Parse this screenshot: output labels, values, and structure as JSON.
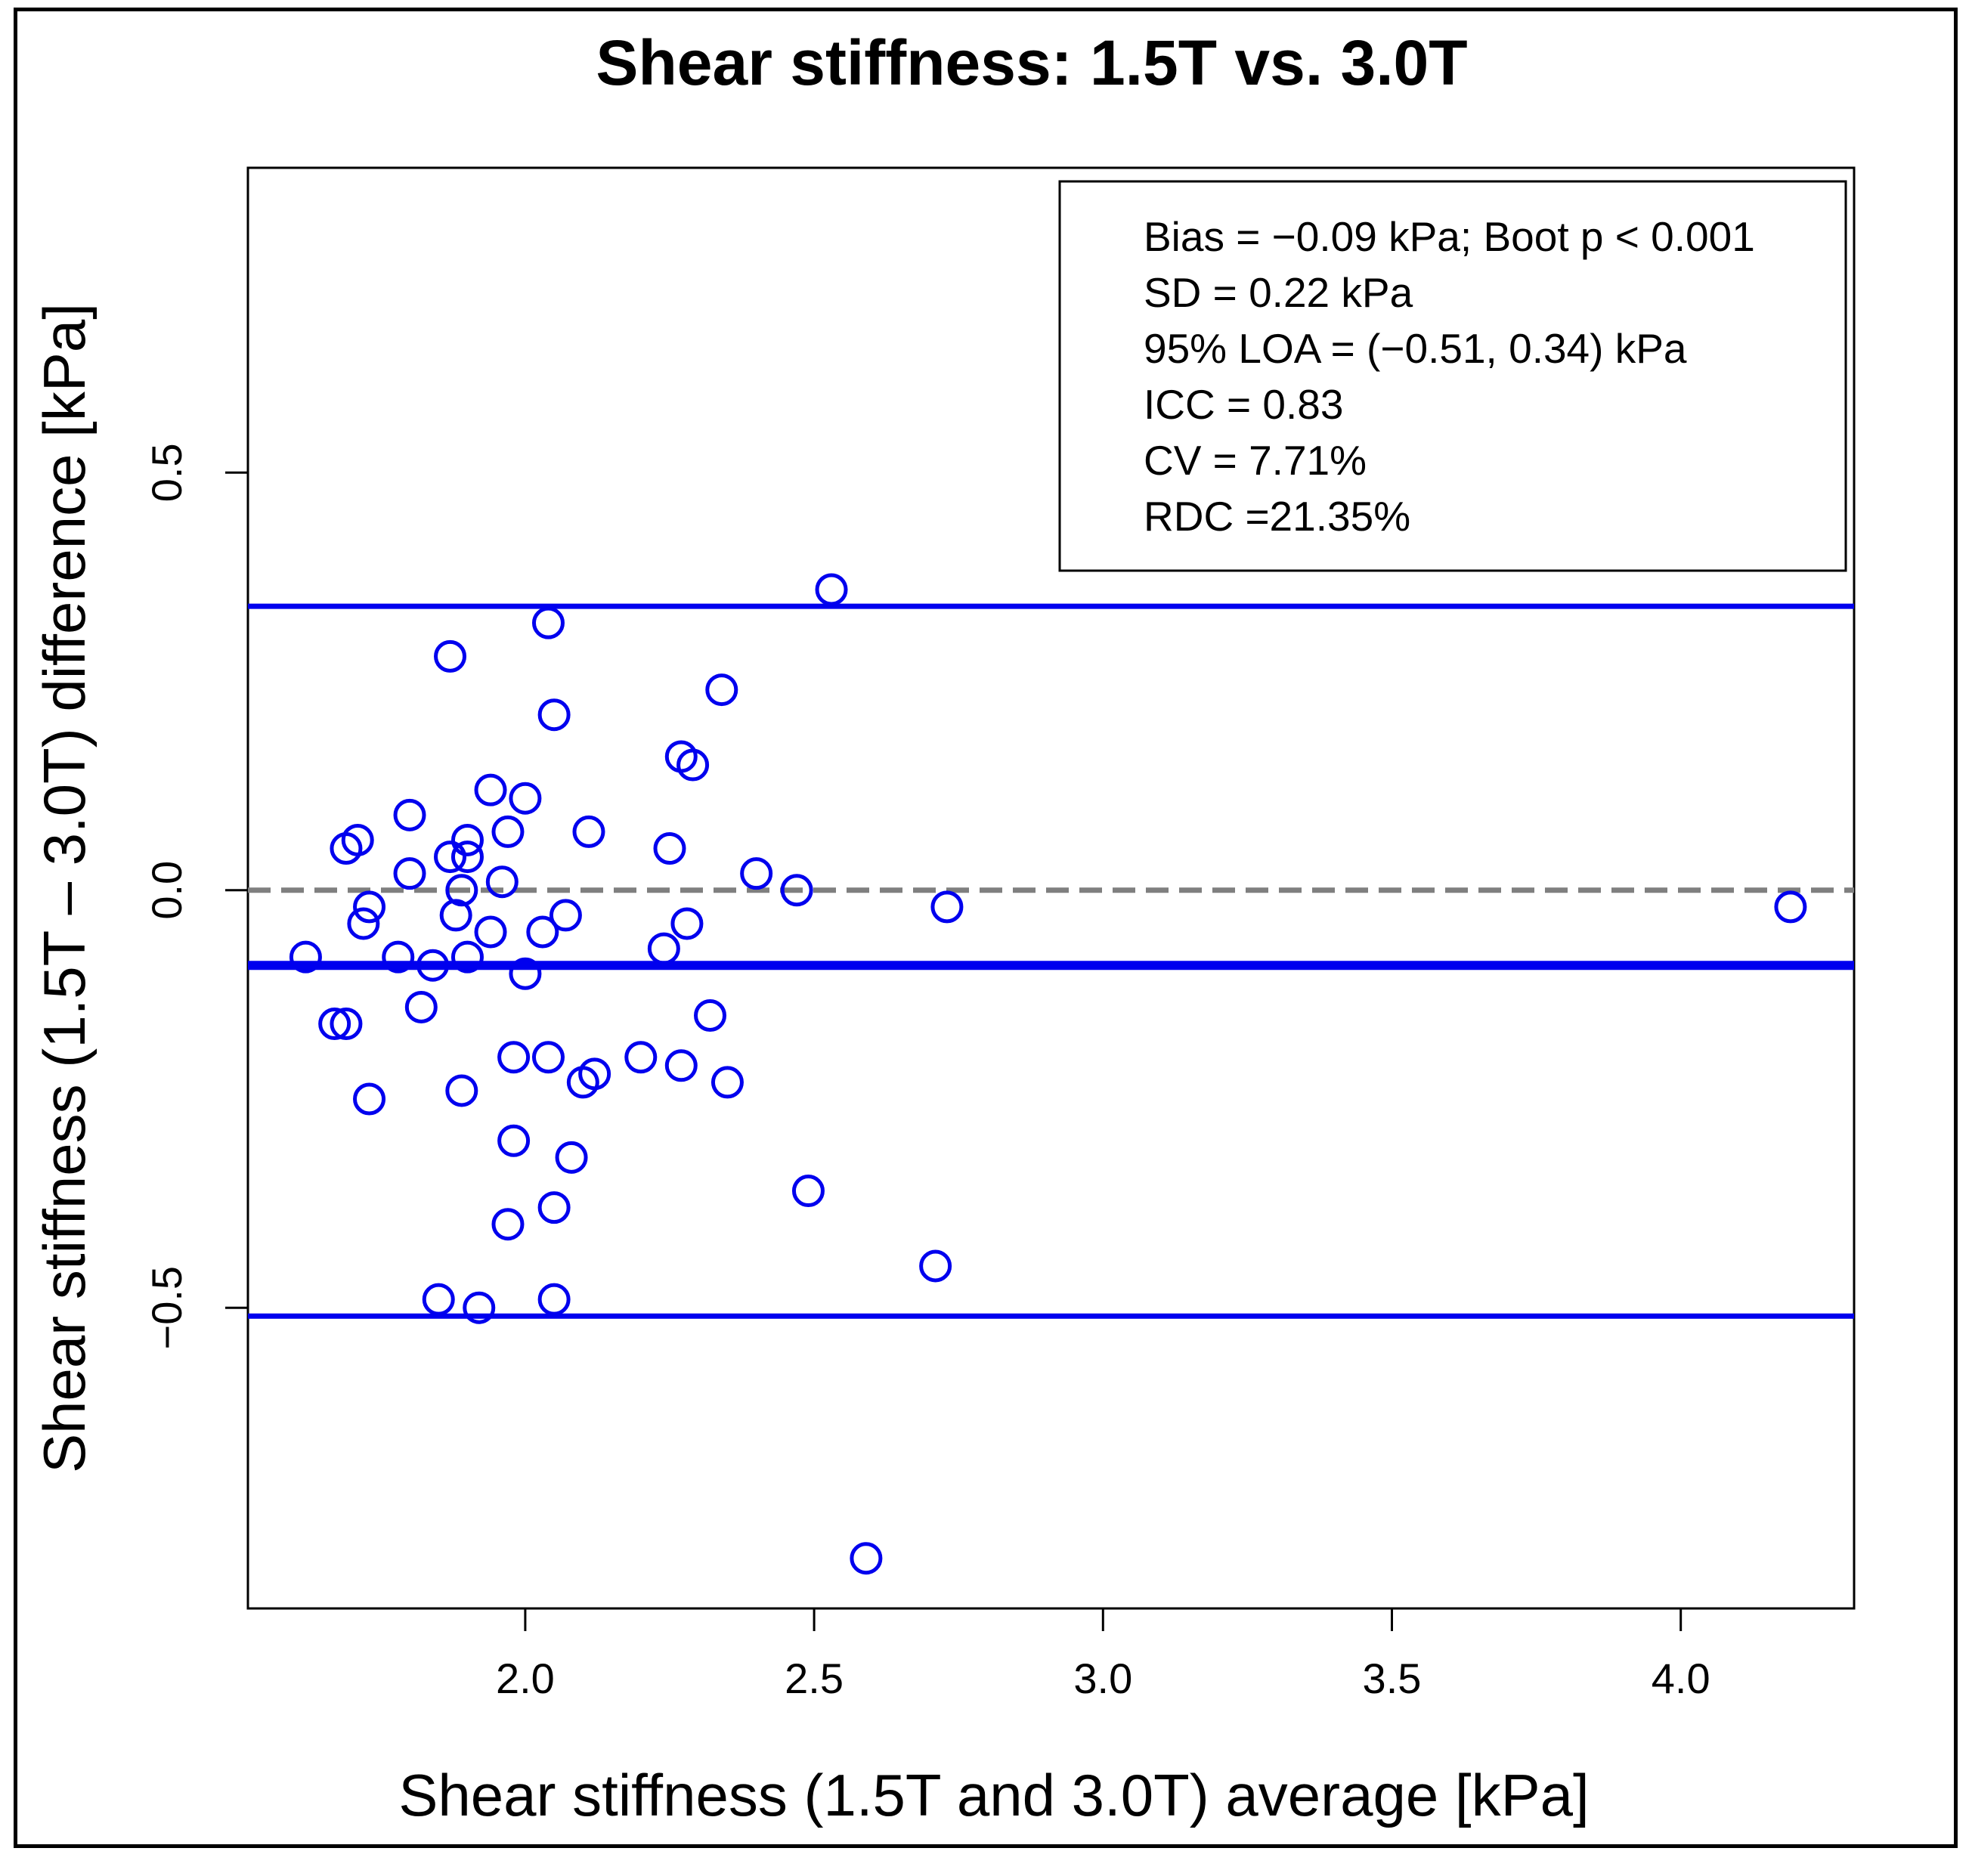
{
  "chart_data": {
    "type": "scatter",
    "title": "Shear stiffness: 1.5T vs. 3.0T",
    "xlabel": "Shear stiffness (1.5T and 3.0T) average [kPa]",
    "ylabel": "Shear stiffness (1.5T – 3.0T) difference [kPa]",
    "xlim": [
      1.52,
      4.3
    ],
    "ylim": [
      -0.86,
      0.865
    ],
    "xticks": [
      2.0,
      2.5,
      3.0,
      3.5,
      4.0
    ],
    "xtick_labels": [
      "2.0",
      "2.5",
      "3.0",
      "3.5",
      "4.0"
    ],
    "yticks": [
      -0.5,
      0.0,
      0.5
    ],
    "ytick_labels": [
      "−0.5",
      "0.0",
      "0.5"
    ],
    "grid": false,
    "legend_position": "top-right",
    "legend": [
      "Bias = −0.09 kPa; Boot p < 0.001",
      "SD = 0.22 kPa",
      "95% LOA = (−0.51, 0.34) kPa",
      "ICC = 0.83",
      "CV = 7.71%",
      "RDC =21.35%"
    ],
    "reference_lines": [
      {
        "name": "upper-loa",
        "y": 0.34,
        "style": "solid",
        "color": "#0000ee"
      },
      {
        "name": "zero",
        "y": 0.0,
        "style": "dashed",
        "color": "#7f7f7f"
      },
      {
        "name": "bias",
        "y": -0.09,
        "style": "solid-thick",
        "color": "#0000ee"
      },
      {
        "name": "lower-loa",
        "y": -0.51,
        "style": "solid",
        "color": "#0000ee"
      }
    ],
    "marker_color": "#0000ee",
    "points": [
      {
        "x": 2.53,
        "y": 0.36
      },
      {
        "x": 2.04,
        "y": 0.32
      },
      {
        "x": 1.87,
        "y": 0.28
      },
      {
        "x": 2.34,
        "y": 0.24
      },
      {
        "x": 2.05,
        "y": 0.21
      },
      {
        "x": 2.27,
        "y": 0.16
      },
      {
        "x": 2.29,
        "y": 0.15
      },
      {
        "x": 1.94,
        "y": 0.12
      },
      {
        "x": 2.0,
        "y": 0.11
      },
      {
        "x": 1.8,
        "y": 0.09
      },
      {
        "x": 1.97,
        "y": 0.07
      },
      {
        "x": 2.11,
        "y": 0.07
      },
      {
        "x": 1.71,
        "y": 0.06
      },
      {
        "x": 1.9,
        "y": 0.06
      },
      {
        "x": 1.69,
        "y": 0.05
      },
      {
        "x": 2.25,
        "y": 0.05
      },
      {
        "x": 1.87,
        "y": 0.04
      },
      {
        "x": 1.9,
        "y": 0.04
      },
      {
        "x": 1.8,
        "y": 0.02
      },
      {
        "x": 2.4,
        "y": 0.02
      },
      {
        "x": 1.96,
        "y": 0.01
      },
      {
        "x": 1.89,
        "y": 0.0
      },
      {
        "x": 2.47,
        "y": 0.0
      },
      {
        "x": 1.73,
        "y": -0.02
      },
      {
        "x": 2.73,
        "y": -0.02
      },
      {
        "x": 4.19,
        "y": -0.02
      },
      {
        "x": 1.88,
        "y": -0.03
      },
      {
        "x": 2.07,
        "y": -0.03
      },
      {
        "x": 1.72,
        "y": -0.04
      },
      {
        "x": 2.28,
        "y": -0.04
      },
      {
        "x": 2.03,
        "y": -0.05
      },
      {
        "x": 1.94,
        "y": -0.05
      },
      {
        "x": 2.24,
        "y": -0.07
      },
      {
        "x": 1.62,
        "y": -0.08
      },
      {
        "x": 1.78,
        "y": -0.08
      },
      {
        "x": 1.9,
        "y": -0.08
      },
      {
        "x": 1.84,
        "y": -0.09
      },
      {
        "x": 2.0,
        "y": -0.1
      },
      {
        "x": 1.82,
        "y": -0.14
      },
      {
        "x": 2.32,
        "y": -0.15
      },
      {
        "x": 1.67,
        "y": -0.16
      },
      {
        "x": 1.69,
        "y": -0.16
      },
      {
        "x": 1.98,
        "y": -0.2
      },
      {
        "x": 2.04,
        "y": -0.2
      },
      {
        "x": 2.2,
        "y": -0.2
      },
      {
        "x": 2.27,
        "y": -0.21
      },
      {
        "x": 2.12,
        "y": -0.22
      },
      {
        "x": 2.1,
        "y": -0.23
      },
      {
        "x": 2.35,
        "y": -0.23
      },
      {
        "x": 1.89,
        "y": -0.24
      },
      {
        "x": 1.73,
        "y": -0.25
      },
      {
        "x": 1.98,
        "y": -0.3
      },
      {
        "x": 2.08,
        "y": -0.32
      },
      {
        "x": 2.49,
        "y": -0.36
      },
      {
        "x": 2.05,
        "y": -0.38
      },
      {
        "x": 1.97,
        "y": -0.4
      },
      {
        "x": 2.71,
        "y": -0.45
      },
      {
        "x": 1.85,
        "y": -0.49
      },
      {
        "x": 2.05,
        "y": -0.49
      },
      {
        "x": 1.92,
        "y": -0.5
      },
      {
        "x": 2.59,
        "y": -0.8
      }
    ]
  }
}
